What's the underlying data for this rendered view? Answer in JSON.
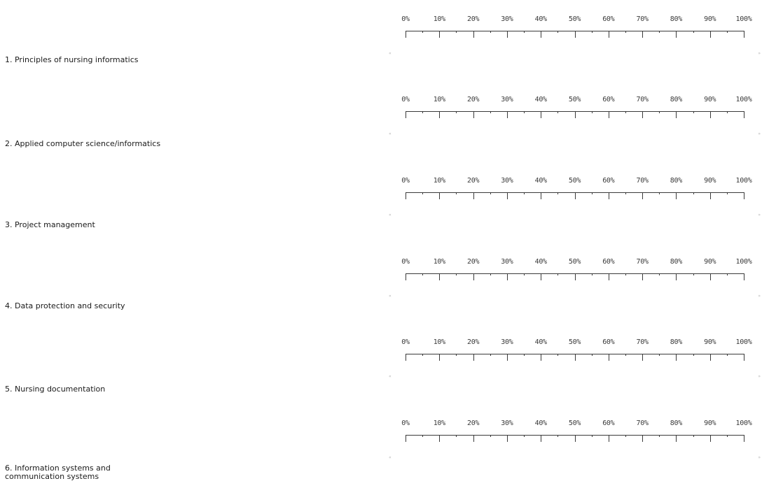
{
  "scale_ticks": [
    "0%",
    "10%",
    "20%",
    "30%",
    "40%",
    "50%",
    "60%",
    "70%",
    "80%",
    "90%",
    "100%"
  ],
  "track_caps": {
    "start": "«",
    "end": "»"
  },
  "items": [
    {
      "label": "1. Principles of nursing informatics"
    },
    {
      "label": "2. Applied computer science/informatics"
    },
    {
      "label": "3. Project management"
    },
    {
      "label": "4. Data protection and security"
    },
    {
      "label": "5. Nursing documentation"
    },
    {
      "label": "6. Information systems and communication systems"
    }
  ]
}
